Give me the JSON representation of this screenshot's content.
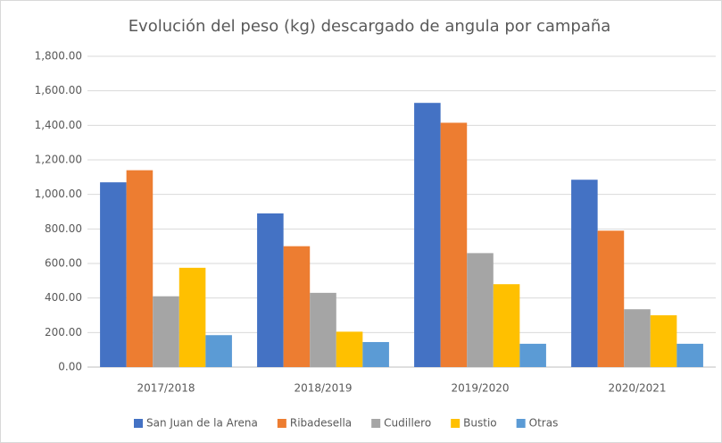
{
  "chart_data": {
    "type": "bar",
    "title": "Evolución del peso (kg) descargado de angula por campaña",
    "categories": [
      "2017/2018",
      "2018/2019",
      "2019/2020",
      "2020/2021"
    ],
    "series": [
      {
        "name": "San Juan de la Arena",
        "color": "#4472c4",
        "values": [
          1070,
          890,
          1530,
          1085
        ]
      },
      {
        "name": "Ribadesella",
        "color": "#ed7d31",
        "values": [
          1140,
          700,
          1415,
          790
        ]
      },
      {
        "name": "Cudillero",
        "color": "#a5a5a5",
        "values": [
          410,
          430,
          660,
          335
        ]
      },
      {
        "name": "Bustio",
        "color": "#ffc000",
        "values": [
          575,
          205,
          480,
          300
        ]
      },
      {
        "name": "Otras",
        "color": "#5b9bd5",
        "values": [
          185,
          145,
          135,
          135
        ]
      }
    ],
    "ylim": [
      0,
      1800
    ],
    "yticks": [
      {
        "value": 0,
        "label": "0.00"
      },
      {
        "value": 200,
        "label": "200.00"
      },
      {
        "value": 400,
        "label": "400.00"
      },
      {
        "value": 600,
        "label": "600.00"
      },
      {
        "value": 800,
        "label": "800.00"
      },
      {
        "value": 1000,
        "label": "1,000.00"
      },
      {
        "value": 1200,
        "label": "1,200.00"
      },
      {
        "value": 1400,
        "label": "1,400.00"
      },
      {
        "value": 1600,
        "label": "1,600.00"
      },
      {
        "value": 1800,
        "label": "1,800.00"
      }
    ],
    "grid": true,
    "legend": "bottom"
  }
}
